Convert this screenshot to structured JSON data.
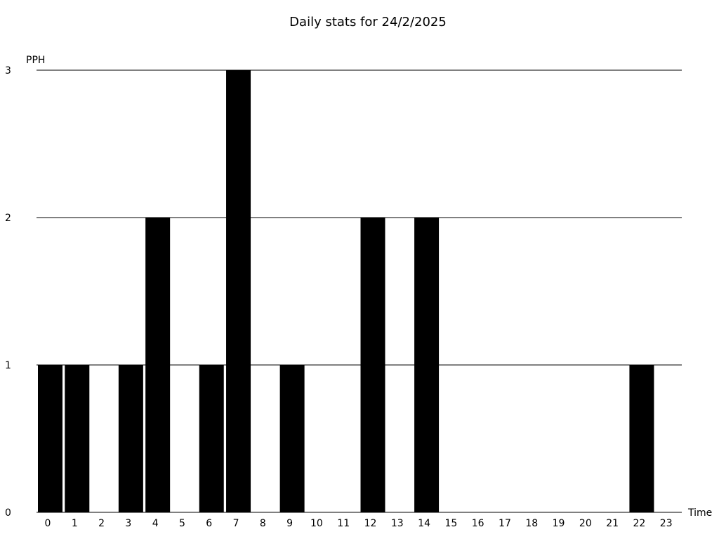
{
  "chart_data": {
    "type": "bar",
    "title": "Daily stats for 24/2/2025",
    "xlabel": "Time",
    "ylabel": "PPH",
    "categories": [
      "0",
      "1",
      "2",
      "3",
      "4",
      "5",
      "6",
      "7",
      "8",
      "9",
      "10",
      "11",
      "12",
      "13",
      "14",
      "15",
      "16",
      "17",
      "18",
      "19",
      "20",
      "21",
      "22",
      "23"
    ],
    "values": [
      1,
      1,
      0,
      1,
      2,
      0,
      1,
      3,
      0,
      1,
      0,
      0,
      2,
      0,
      2,
      0,
      0,
      0,
      0,
      0,
      0,
      0,
      1,
      0
    ],
    "ylim": [
      0,
      3
    ],
    "yticks": [
      "0",
      "1",
      "2",
      "3"
    ],
    "grid": true,
    "bar_color": "#000000"
  }
}
